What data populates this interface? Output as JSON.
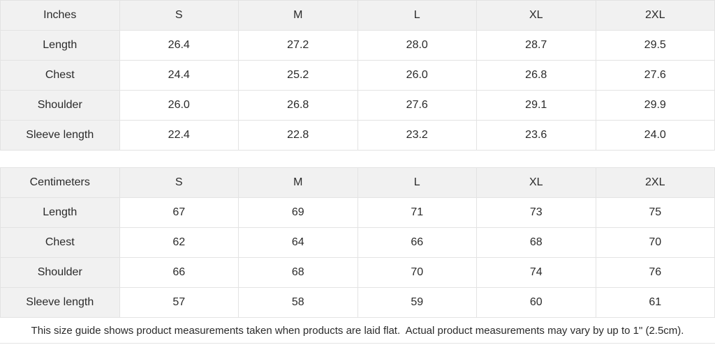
{
  "colors": {
    "header_bg": "#f1f1f1",
    "cell_bg": "#ffffff",
    "border": "#e3e3e3",
    "text": "#2a2a2a"
  },
  "chart_data": [
    {
      "type": "table",
      "unit": "Inches",
      "columns": [
        "Inches",
        "S",
        "M",
        "L",
        "XL",
        "2XL"
      ],
      "rows": [
        {
          "label": "Length",
          "values": [
            "26.4",
            "27.2",
            "28.0",
            "28.7",
            "29.5"
          ]
        },
        {
          "label": "Chest",
          "values": [
            "24.4",
            "25.2",
            "26.0",
            "26.8",
            "27.6"
          ]
        },
        {
          "label": "Shoulder",
          "values": [
            "26.0",
            "26.8",
            "27.6",
            "29.1",
            "29.9"
          ]
        },
        {
          "label": "Sleeve length",
          "values": [
            "22.4",
            "22.8",
            "23.2",
            "23.6",
            "24.0"
          ]
        }
      ]
    },
    {
      "type": "table",
      "unit": "Centimeters",
      "columns": [
        "Centimeters",
        "S",
        "M",
        "L",
        "XL",
        "2XL"
      ],
      "rows": [
        {
          "label": "Length",
          "values": [
            "67",
            "69",
            "71",
            "73",
            "75"
          ]
        },
        {
          "label": "Chest",
          "values": [
            "62",
            "64",
            "66",
            "68",
            "70"
          ]
        },
        {
          "label": "Shoulder",
          "values": [
            "66",
            "68",
            "70",
            "74",
            "76"
          ]
        },
        {
          "label": "Sleeve length",
          "values": [
            "57",
            "58",
            "59",
            "60",
            "61"
          ]
        }
      ]
    }
  ],
  "footnote": "This size guide shows product measurements taken when products are laid flat.  Actual product measurements may vary by up to 1\" (2.5cm)."
}
